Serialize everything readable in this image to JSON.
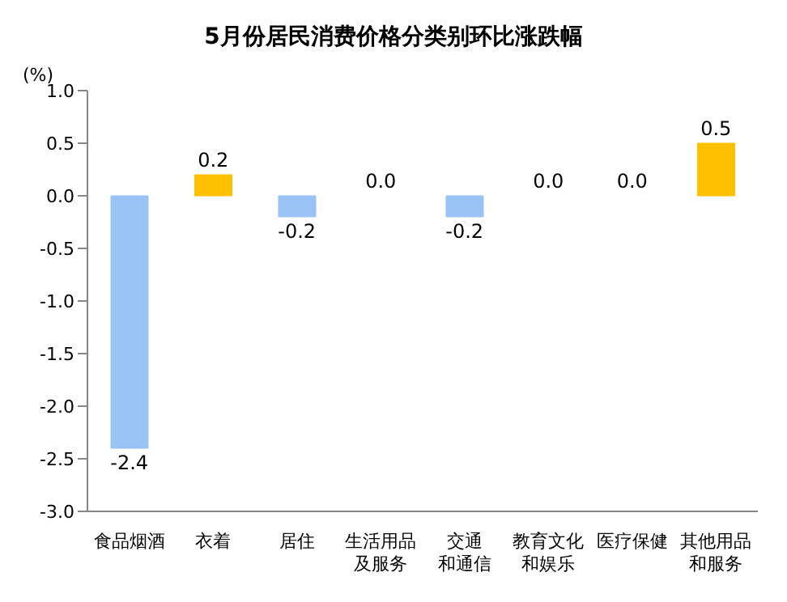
{
  "chart_data": {
    "type": "bar",
    "title": "5月份居民消费价格分类别环比涨跌幅",
    "ylabel": "(%)",
    "categories": [
      "食品烟酒",
      "衣着",
      "居住",
      "生活用品及服务",
      "交通和通信",
      "教育文化和娱乐",
      "医疗保健",
      "其他用品和服务"
    ],
    "values": [
      -2.4,
      0.2,
      -0.2,
      0.0,
      -0.2,
      0.0,
      0.0,
      0.5
    ],
    "colors": [
      "#99c2f5",
      "#ffc000",
      "#99c2f5",
      "#99c2f5",
      "#99c2f5",
      "#99c2f5",
      "#99c2f5",
      "#ffc000"
    ],
    "value_labels": [
      "-2.4",
      "0.2",
      "-0.2",
      "0.0",
      "-0.2",
      "0.0",
      "0.0",
      "0.5"
    ],
    "ylim": [
      -3,
      1
    ],
    "yticks": [
      {
        "value": -3,
        "label": "-3.0"
      },
      {
        "value": -2.5,
        "label": "-2.5"
      },
      {
        "value": -2,
        "label": "-2.0"
      },
      {
        "value": -1.5,
        "label": "-1.5"
      },
      {
        "value": -1,
        "label": "-1.0"
      },
      {
        "value": -0.5,
        "label": "-0.5"
      },
      {
        "value": 0,
        "label": "0.0"
      },
      {
        "value": 0.5,
        "label": "0.5"
      },
      {
        "value": 1,
        "label": "1.0"
      }
    ],
    "grid": false,
    "legend": false
  }
}
